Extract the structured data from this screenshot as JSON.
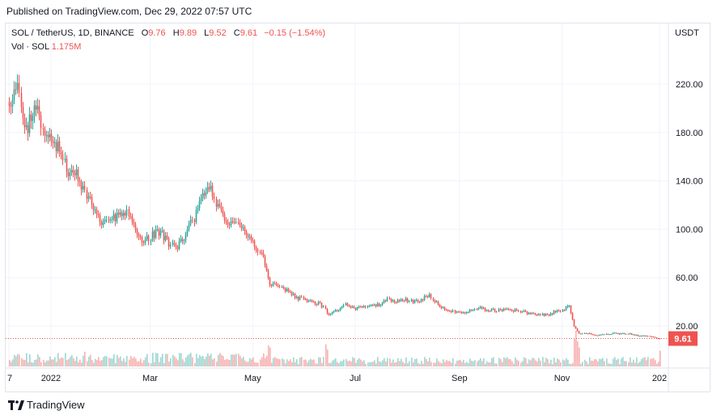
{
  "header": {
    "published": "Published on TradingView.com, Dec 29, 2022 07:57 UTC"
  },
  "legend": {
    "symbol": "SOL / TetherUS, 1D, BINANCE",
    "open_label": "O",
    "open": "9.76",
    "high_label": "H",
    "high": "9.89",
    "low_label": "L",
    "low": "9.52",
    "close_label": "C",
    "close": "9.61",
    "change": "−0.15 (−1.54%)",
    "volume_label": "Vol · SOL",
    "volume": "1.175M"
  },
  "currency": "USDT",
  "brand": {
    "name": "TradingView"
  },
  "colors": {
    "up": "#26a69a",
    "down": "#ef5350",
    "grid": "#f0f3fa",
    "text": "#131722"
  },
  "chart_data": {
    "type": "candlestick",
    "symbol": "SOL / TetherUS",
    "interval": "1D",
    "exchange": "BINANCE",
    "y_axis": {
      "ticks": [
        "220.00",
        "180.00",
        "140.00",
        "100.00",
        "60.00",
        "20.00"
      ],
      "ylim": [
        0,
        246
      ],
      "position": "right"
    },
    "x_axis": {
      "ticks": [
        "7",
        "2022",
        "Mar",
        "May",
        "Jul",
        "Sep",
        "Nov",
        "202"
      ]
    },
    "last_price": "9.61",
    "grid": true,
    "series": [
      {
        "name": "price",
        "type": "close",
        "points": [
          [
            "2021-12-07",
            205
          ],
          [
            "2021-12-12",
            215
          ],
          [
            "2021-12-17",
            180
          ],
          [
            "2021-12-22",
            205
          ],
          [
            "2021-12-27",
            185
          ],
          [
            "2022-01-01",
            175
          ],
          [
            "2022-01-06",
            165
          ],
          [
            "2022-01-11",
            145
          ],
          [
            "2022-01-16",
            148
          ],
          [
            "2022-01-21",
            130
          ],
          [
            "2022-01-26",
            120
          ],
          [
            "2022-01-31",
            105
          ],
          [
            "2022-02-05",
            108
          ],
          [
            "2022-02-10",
            112
          ],
          [
            "2022-02-15",
            115
          ],
          [
            "2022-02-20",
            100
          ],
          [
            "2022-02-25",
            90
          ],
          [
            "2022-03-02",
            95
          ],
          [
            "2022-03-07",
            98
          ],
          [
            "2022-03-12",
            88
          ],
          [
            "2022-03-17",
            85
          ],
          [
            "2022-03-22",
            95
          ],
          [
            "2022-03-27",
            110
          ],
          [
            "2022-04-01",
            128
          ],
          [
            "2022-04-06",
            132
          ],
          [
            "2022-04-11",
            115
          ],
          [
            "2022-04-16",
            105
          ],
          [
            "2022-04-21",
            103
          ],
          [
            "2022-04-26",
            100
          ],
          [
            "2022-05-01",
            90
          ],
          [
            "2022-05-06",
            80
          ],
          [
            "2022-05-11",
            55
          ],
          [
            "2022-05-16",
            52
          ],
          [
            "2022-05-21",
            50
          ],
          [
            "2022-05-26",
            44
          ],
          [
            "2022-05-31",
            42
          ],
          [
            "2022-06-05",
            40
          ],
          [
            "2022-06-10",
            38
          ],
          [
            "2022-06-15",
            30
          ],
          [
            "2022-06-20",
            33
          ],
          [
            "2022-06-25",
            38
          ],
          [
            "2022-06-30",
            34
          ],
          [
            "2022-07-05",
            36
          ],
          [
            "2022-07-10",
            38
          ],
          [
            "2022-07-15",
            37
          ],
          [
            "2022-07-20",
            42
          ],
          [
            "2022-07-25",
            40
          ],
          [
            "2022-07-30",
            42
          ],
          [
            "2022-08-04",
            40
          ],
          [
            "2022-08-09",
            42
          ],
          [
            "2022-08-14",
            45
          ],
          [
            "2022-08-19",
            38
          ],
          [
            "2022-08-24",
            33
          ],
          [
            "2022-08-29",
            32
          ],
          [
            "2022-09-03",
            31
          ],
          [
            "2022-09-08",
            33
          ],
          [
            "2022-09-13",
            35
          ],
          [
            "2022-09-18",
            33
          ],
          [
            "2022-09-23",
            33
          ],
          [
            "2022-09-28",
            33
          ],
          [
            "2022-10-03",
            33
          ],
          [
            "2022-10-08",
            32
          ],
          [
            "2022-10-13",
            30
          ],
          [
            "2022-10-18",
            29
          ],
          [
            "2022-10-23",
            29
          ],
          [
            "2022-10-28",
            32
          ],
          [
            "2022-11-02",
            33
          ],
          [
            "2022-11-05",
            38
          ],
          [
            "2022-11-08",
            20
          ],
          [
            "2022-11-11",
            14
          ],
          [
            "2022-11-16",
            14
          ],
          [
            "2022-11-21",
            12
          ],
          [
            "2022-11-26",
            13
          ],
          [
            "2022-12-01",
            14
          ],
          [
            "2022-12-06",
            13.5
          ],
          [
            "2022-12-11",
            13.5
          ],
          [
            "2022-12-16",
            12
          ],
          [
            "2022-12-21",
            11.5
          ],
          [
            "2022-12-26",
            10.5
          ],
          [
            "2022-12-29",
            9.61
          ]
        ]
      }
    ]
  }
}
